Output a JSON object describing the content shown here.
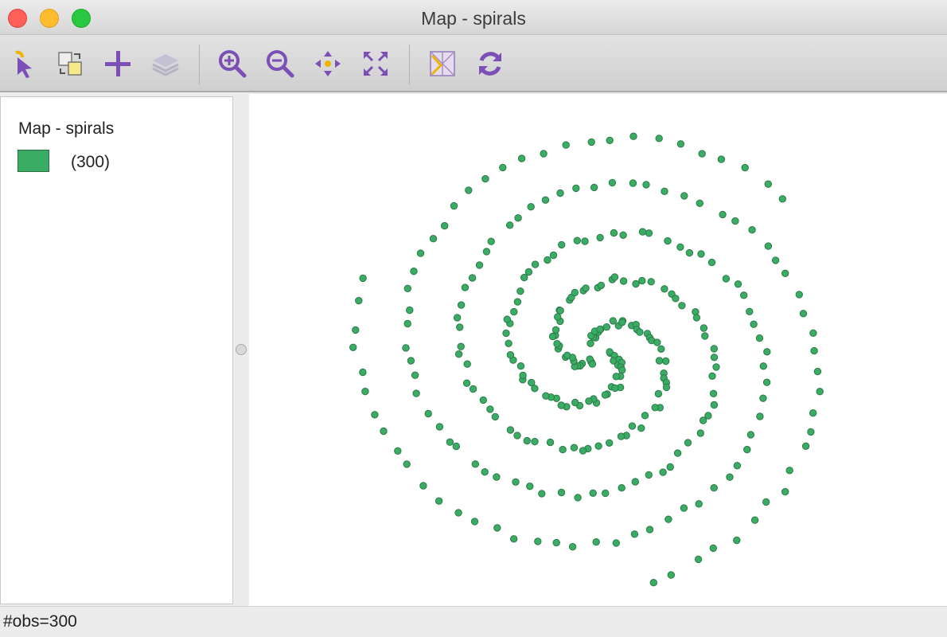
{
  "window": {
    "title": "Map - spirals"
  },
  "toolbar": {
    "tools": [
      {
        "name": "select-tool-icon"
      },
      {
        "name": "selection-shape-icon"
      },
      {
        "name": "add-layer-icon"
      },
      {
        "name": "layers-icon"
      },
      {
        "name": "zoom-in-icon"
      },
      {
        "name": "zoom-out-icon"
      },
      {
        "name": "pan-icon"
      },
      {
        "name": "full-extent-icon"
      },
      {
        "name": "basemap-icon"
      },
      {
        "name": "refresh-icon"
      }
    ]
  },
  "legend": {
    "title": "Map - spirals",
    "items": [
      {
        "label": "(300)",
        "color": "#3aac63"
      }
    ]
  },
  "map": {
    "point_color": "#3aac63",
    "point_stroke": "#2c7a49"
  },
  "status": {
    "text": "#obs=300"
  }
}
